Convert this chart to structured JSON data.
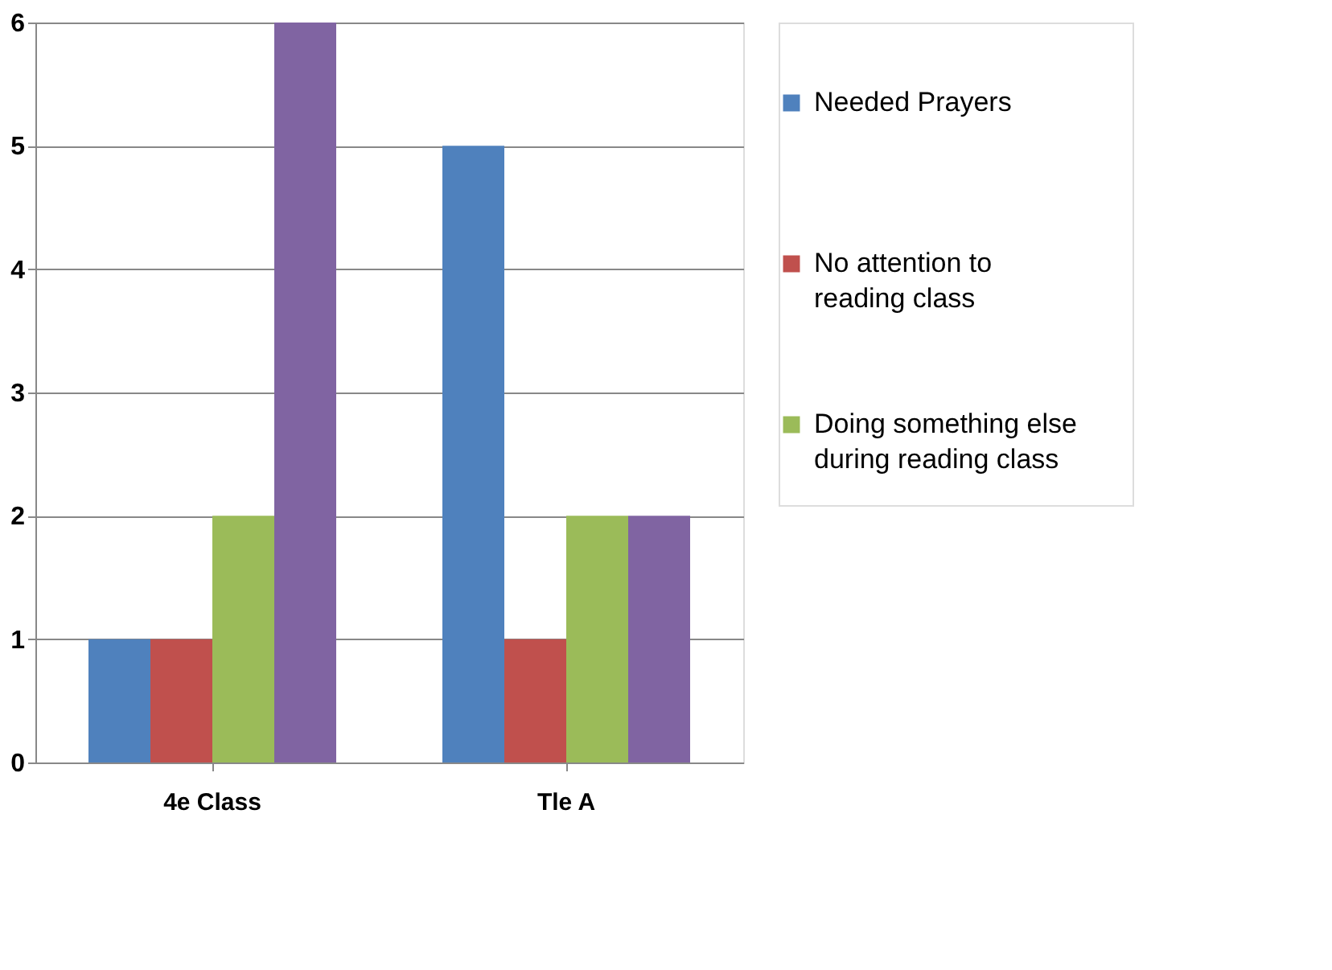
{
  "chart_data": {
    "type": "bar",
    "categories": [
      "4e Class",
      "Tle A"
    ],
    "series": [
      {
        "name": "Needed Prayers",
        "color": "#4f81bd",
        "values": [
          1,
          5
        ]
      },
      {
        "name": "No attention to reading class",
        "color": "#c0504d",
        "values": [
          1,
          1
        ]
      },
      {
        "name": "Doing something else during reading class",
        "color": "#9bbb59",
        "values": [
          2,
          2
        ]
      },
      {
        "color": "#8064a2",
        "values": [
          6,
          2
        ]
      }
    ],
    "ylim": [
      0,
      6
    ],
    "yticks": [
      0,
      1,
      2,
      3,
      4,
      5,
      6
    ],
    "grid": "y",
    "legend": "right"
  }
}
